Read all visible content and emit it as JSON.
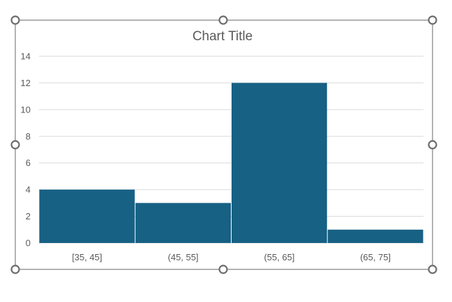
{
  "colors": {
    "bar_fill": "#176185",
    "bar_gap": "#ffffff",
    "gridline": "#d9d9d9",
    "text": "#595959",
    "frame": "#7f7f7f",
    "handle_stroke": "#6d6d6d"
  },
  "chart_data": {
    "type": "bar",
    "subtype": "histogram",
    "title": "Chart Title",
    "categories": [
      "[35, 45]",
      "(45, 55]",
      "(55, 65]",
      "(65, 75]"
    ],
    "values": [
      4,
      3,
      12,
      1
    ],
    "xlabel": "",
    "ylabel": "",
    "ylim": [
      0,
      14
    ],
    "yticks": [
      0,
      2,
      4,
      6,
      8,
      10,
      12,
      14
    ],
    "grid": true,
    "legend": "none"
  },
  "selection": {
    "selected": true,
    "handles": [
      "top-left",
      "top-center",
      "top-right",
      "middle-left",
      "middle-right",
      "bottom-left",
      "bottom-center",
      "bottom-right"
    ]
  }
}
